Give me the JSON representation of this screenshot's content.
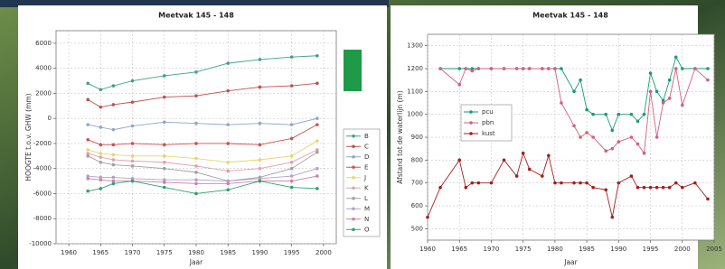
{
  "chart_data": [
    {
      "type": "line",
      "title": "Meetvak 145 - 148",
      "xlabel": "Jaar",
      "ylabel": "HOOGTE t.o.v. GHW (mm)",
      "x": [
        1963,
        1965,
        1967,
        1970,
        1975,
        1980,
        1985,
        1990,
        1995,
        1999
      ],
      "xlim": [
        1958,
        2002
      ],
      "xticks": [
        1960,
        1965,
        1970,
        1975,
        1980,
        1985,
        1990,
        1995,
        2000
      ],
      "ylim": [
        -10000,
        7000
      ],
      "yticks": [
        -10000,
        -8000,
        -6000,
        -4000,
        -2000,
        0,
        2000,
        4000,
        6000
      ],
      "grid": true,
      "legend": "right",
      "series": [
        {
          "name": "B",
          "color": "#3aa38a",
          "values": [
            2800,
            2300,
            2600,
            3000,
            3400,
            3700,
            4400,
            4700,
            4900,
            5000
          ]
        },
        {
          "name": "C",
          "color": "#c0504d",
          "values": [
            1500,
            900,
            1100,
            1300,
            1700,
            1800,
            2200,
            2500,
            2600,
            2800
          ]
        },
        {
          "name": "D",
          "color": "#8fa6c8",
          "values": [
            -500,
            -700,
            -900,
            -600,
            -300,
            -400,
            -500,
            -400,
            -500,
            0
          ]
        },
        {
          "name": "E",
          "color": "#d05050",
          "values": [
            -1700,
            -2100,
            -2100,
            -2000,
            -2100,
            -2000,
            -2000,
            -2100,
            -1600,
            -500
          ]
        },
        {
          "name": "J",
          "color": "#e6d66e",
          "values": [
            -2500,
            -2800,
            -2900,
            -3000,
            -3000,
            -3200,
            -3500,
            -3300,
            -3000,
            -1800
          ]
        },
        {
          "name": "K",
          "color": "#e0a0b0",
          "values": [
            -2800,
            -3100,
            -3300,
            -3400,
            -3500,
            -3800,
            -4200,
            -4000,
            -3500,
            -2500
          ]
        },
        {
          "name": "L",
          "color": "#a0a0a0",
          "values": [
            -3000,
            -3500,
            -3700,
            -3800,
            -4000,
            -4300,
            -5000,
            -4700,
            -4000,
            -2700
          ]
        },
        {
          "name": "M",
          "color": "#b0a0d0",
          "values": [
            -4600,
            -4700,
            -4700,
            -4800,
            -4900,
            -4900,
            -5000,
            -4800,
            -4600,
            -4000
          ]
        },
        {
          "name": "N",
          "color": "#d080a0",
          "values": [
            -4800,
            -4900,
            -5000,
            -5000,
            -5100,
            -5200,
            -5200,
            -5000,
            -5000,
            -4600
          ]
        },
        {
          "name": "O",
          "color": "#30a070",
          "values": [
            -5800,
            -5600,
            -5200,
            -5000,
            -5500,
            -6000,
            -5700,
            -5000,
            -5500,
            -5600
          ]
        }
      ]
    },
    {
      "type": "line",
      "title": "Meetvak 145 - 148",
      "xlabel": "Jaar",
      "ylabel": "Afstand tot de waterlijn (m)",
      "x": [
        1960,
        1962,
        1965,
        1966,
        1967,
        1968,
        1970,
        1972,
        1974,
        1975,
        1976,
        1978,
        1979,
        1980,
        1981,
        1983,
        1984,
        1985,
        1986,
        1988,
        1989,
        1990,
        1992,
        1993,
        1994,
        1995,
        1996,
        1997,
        1998,
        1999,
        2000,
        2002,
        2004
      ],
      "xlim": [
        1960,
        2005
      ],
      "xticks": [
        1960,
        1965,
        1970,
        1975,
        1980,
        1985,
        1990,
        1995,
        2000,
        2005
      ],
      "ylim": [
        450,
        1350
      ],
      "yticks": [
        500,
        600,
        700,
        800,
        900,
        1000,
        1100,
        1200,
        1300
      ],
      "grid": true,
      "legend": "upper left",
      "series": [
        {
          "name": "pcu",
          "color": "#1a9a7a",
          "values": [
            null,
            1200,
            1200,
            1200,
            1200,
            1200,
            1200,
            1200,
            1200,
            1200,
            1200,
            1200,
            1200,
            1200,
            1200,
            1100,
            1150,
            1020,
            1000,
            1000,
            930,
            1000,
            1000,
            970,
            1000,
            1180,
            1100,
            1060,
            1150,
            1250,
            1200,
            1200,
            1200
          ]
        },
        {
          "name": "pbn",
          "color": "#d06080",
          "values": [
            null,
            1200,
            1130,
            1200,
            1190,
            1200,
            1200,
            1200,
            1200,
            1200,
            1200,
            1200,
            1200,
            1200,
            1050,
            950,
            900,
            920,
            900,
            840,
            850,
            880,
            900,
            870,
            830,
            1100,
            900,
            1050,
            1070,
            1200,
            1040,
            1200,
            1150
          ]
        },
        {
          "name": "kust",
          "color": "#a02020",
          "values": [
            550,
            680,
            800,
            680,
            700,
            700,
            700,
            800,
            730,
            830,
            760,
            730,
            820,
            700,
            700,
            700,
            700,
            700,
            680,
            670,
            550,
            700,
            730,
            680,
            680,
            680,
            680,
            680,
            680,
            700,
            680,
            700,
            630
          ]
        }
      ]
    }
  ]
}
